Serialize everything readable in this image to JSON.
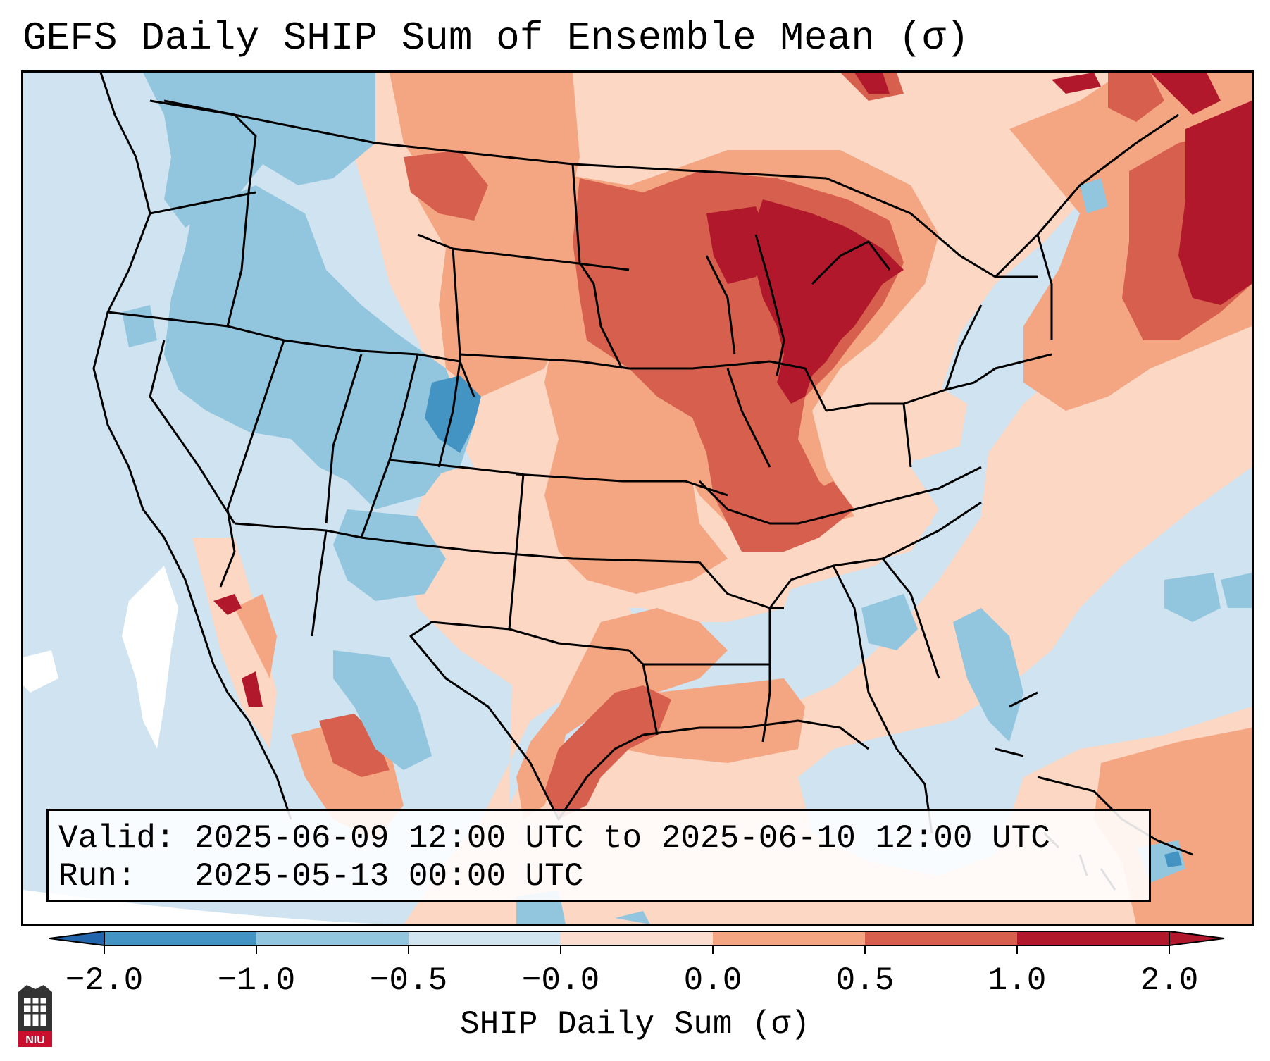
{
  "title": "GEFS Daily SHIP Sum of Ensemble Mean (σ)",
  "info": {
    "valid_label": "Valid:",
    "valid_value": "2025-06-09 12:00 UTC to 2025-06-10 12:00 UTC",
    "run_label": "Run:",
    "run_value": "2025-05-13 00:00 UTC"
  },
  "colorbar": {
    "label": "SHIP Daily Sum (σ)",
    "ticks": [
      "−2.0",
      "−1.0",
      "−0.5",
      "−0.0",
      "0.0",
      "0.5",
      "1.0",
      "2.0"
    ],
    "colors": [
      "#4393c3",
      "#92c5de",
      "#d1e5f0",
      "#fbddd0",
      "#f4a582",
      "#d6604d",
      "#b2182b"
    ],
    "under_color": "#2166ac",
    "over_color": "#b2182b"
  },
  "map_colors": {
    "background": "#cfe3f0",
    "light_red": "#fbd7c4",
    "mid_red": "#f4a582",
    "strong_red": "#d6604d",
    "darkest_red": "#b2182b",
    "mid_blue": "#92c5de",
    "strong_blue": "#4393c3",
    "white": "#ffffff"
  },
  "logo": {
    "text": "NIU"
  }
}
